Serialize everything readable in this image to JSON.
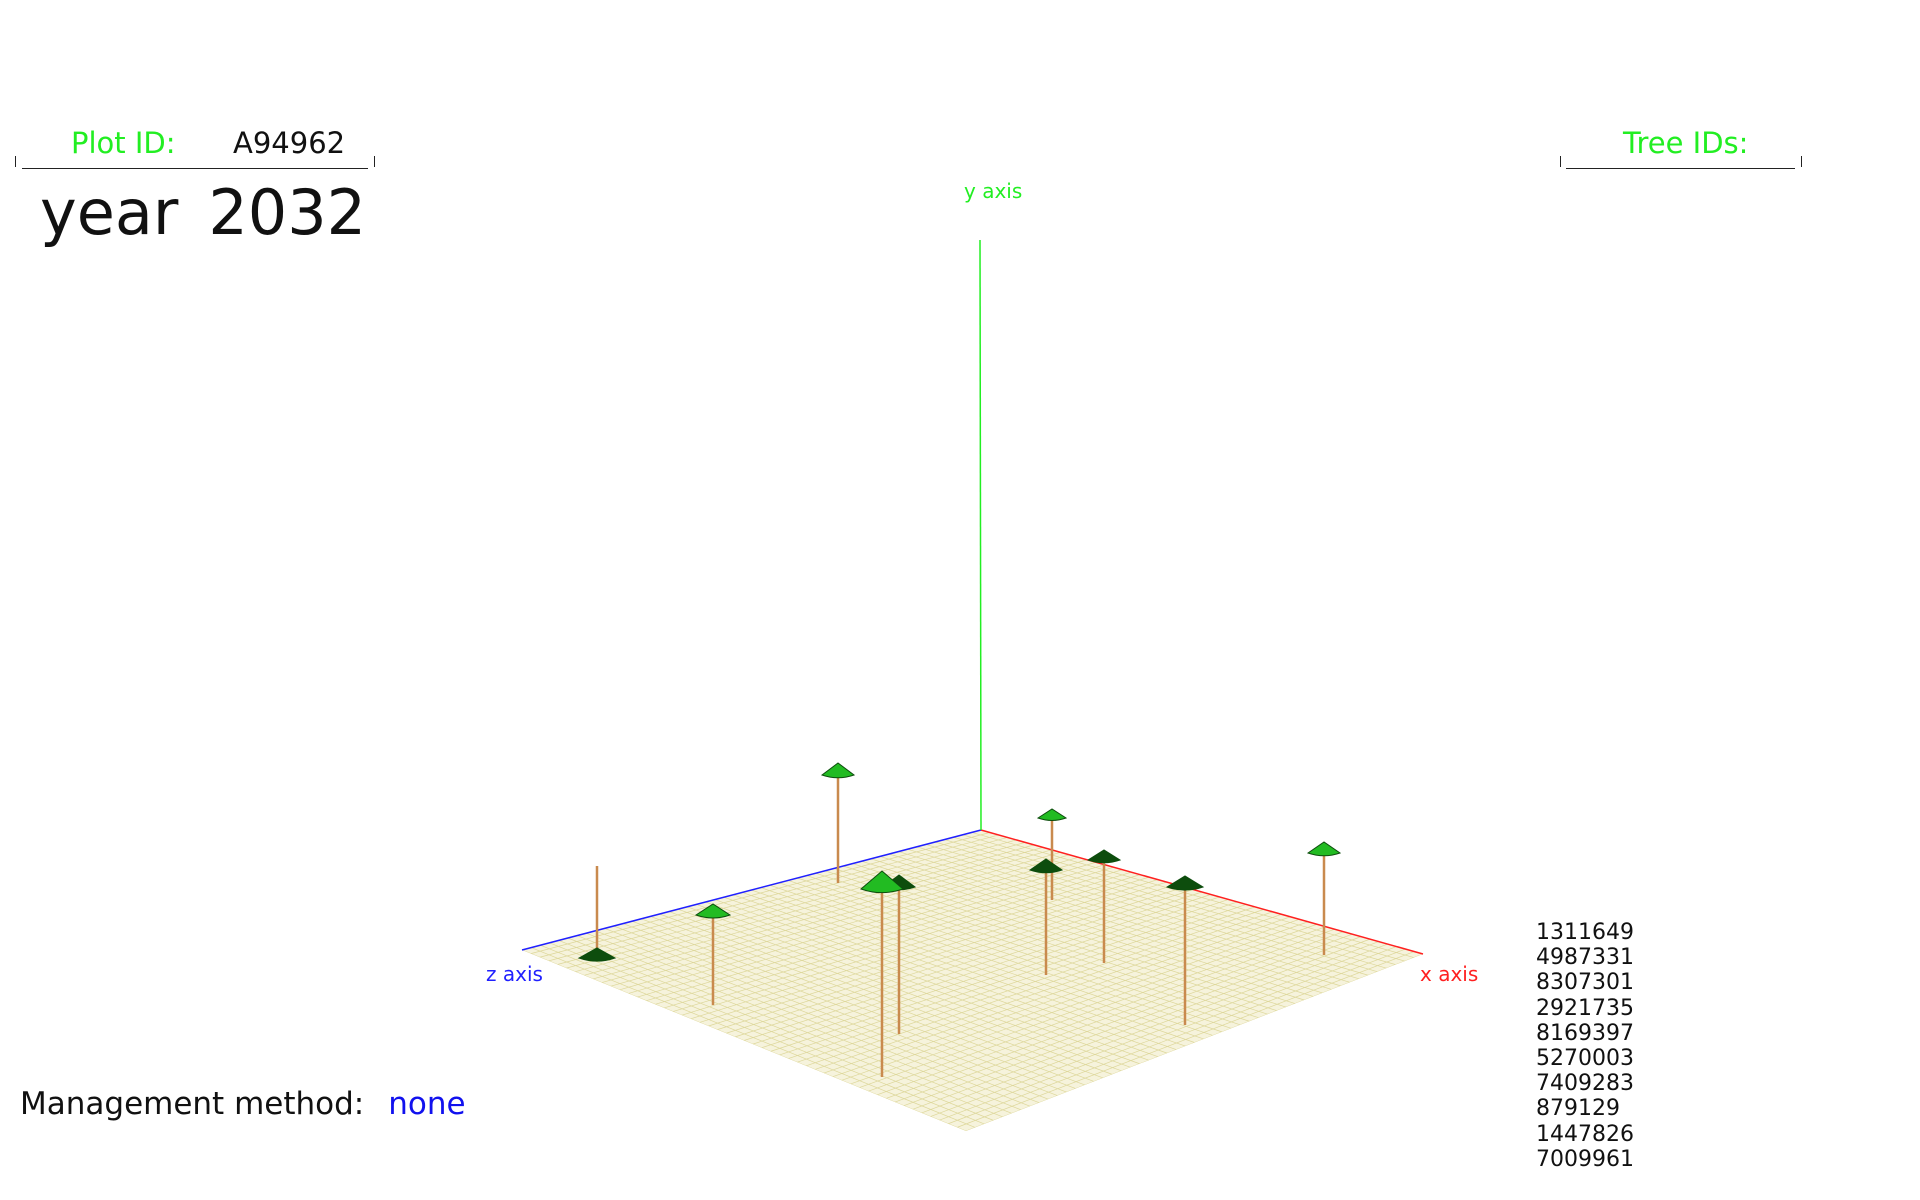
{
  "plot": {
    "id_label": "Plot ID:",
    "id_value": "A94962"
  },
  "year": {
    "label": "year",
    "value": "2032"
  },
  "tree_ids_panel": {
    "label": "Tree IDs:",
    "ids": [
      "1311649",
      "4987331",
      "8307301",
      "2921735",
      "8169397",
      "5270003",
      "7409283",
      "879129",
      "1447826",
      "7009961"
    ]
  },
  "axes": {
    "x_label": "x axis",
    "y_label": "y axis",
    "z_label": "z axis",
    "x_color": "#ff2020",
    "y_color": "#22ee22",
    "z_color": "#2020ff"
  },
  "ground": {
    "fill": "#f6f3dc",
    "grid_color": "#ddd79a"
  },
  "trees": {
    "crown_light": "#22bb22",
    "crown_dark": "#0d4d0d",
    "trunk_color": "#c98a4e"
  },
  "management": {
    "label": "Management method:",
    "value": "none"
  }
}
